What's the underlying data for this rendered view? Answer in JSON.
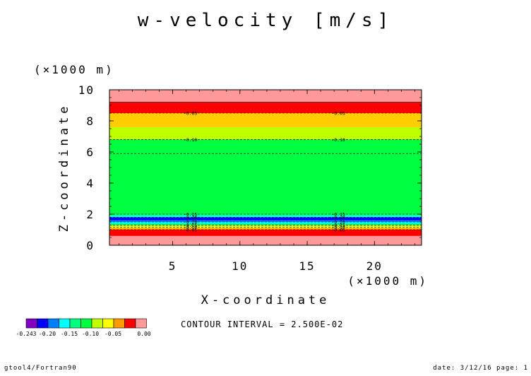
{
  "chart_data": {
    "type": "heatmap",
    "title": "w-velocity [m/s]",
    "xlabel": "X-coordinate",
    "ylabel": "Z-coordinate",
    "x_unit": "(×1000 m)",
    "y_unit": "(×1000 m)",
    "xlim": [
      0.3,
      23.5
    ],
    "ylim": [
      0,
      10
    ],
    "x_ticks": [
      5,
      10,
      15,
      20
    ],
    "y_ticks": [
      0,
      2,
      4,
      6,
      8,
      10
    ],
    "contour_levels": [
      -0.05,
      -0.1,
      -0.15,
      -0.2,
      -0.2,
      -0.15,
      -0.1,
      -0.05
    ],
    "contour_label_x": [
      5.8,
      16.8
    ],
    "contour_interval_text": "CONTOUR INTERVAL = 2.500E-02",
    "legend": {
      "labels": [
        "-0.243",
        "-0.20",
        "-0.15",
        "-0.10",
        "-0.05",
        "0.00"
      ],
      "colors": [
        "#7f00bf",
        "#0000ff",
        "#0080ff",
        "#00ffff",
        "#00ff80",
        "#00ff40",
        "#c0ff00",
        "#ffff00",
        "#ff9900",
        "#ff0000",
        "#ff9999"
      ]
    },
    "bands": [
      {
        "z0": 0.0,
        "z1": 0.6,
        "color": "#ff9999"
      },
      {
        "z0": 0.6,
        "z1": 1.0,
        "color": "#ff0000"
      },
      {
        "z0": 1.0,
        "z1": 1.1,
        "color": "#ff9900"
      },
      {
        "z0": 1.1,
        "z1": 1.2,
        "color": "#ffff00"
      },
      {
        "z0": 1.2,
        "z1": 1.3,
        "color": "#c0ff00"
      },
      {
        "z0": 1.3,
        "z1": 1.4,
        "color": "#00ff80"
      },
      {
        "z0": 1.4,
        "z1": 1.5,
        "color": "#00ffff"
      },
      {
        "z0": 1.5,
        "z1": 1.6,
        "color": "#0080ff"
      },
      {
        "z0": 1.6,
        "z1": 1.8,
        "color": "#0000ff"
      },
      {
        "z0": 1.8,
        "z1": 1.9,
        "color": "#00ffff"
      },
      {
        "z0": 1.9,
        "z1": 2.0,
        "color": "#00ff80"
      },
      {
        "z0": 2.0,
        "z1": 5.9,
        "color": "#00ff40"
      },
      {
        "z0": 5.9,
        "z1": 6.8,
        "color": "#00ff40"
      },
      {
        "z0": 6.8,
        "z1": 7.6,
        "color": "#c0ff00"
      },
      {
        "z0": 7.6,
        "z1": 8.5,
        "color": "#ffcc00"
      },
      {
        "z0": 8.5,
        "z1": 9.2,
        "color": "#ff0000"
      },
      {
        "z0": 9.2,
        "z1": 10.0,
        "color": "#ff9999"
      }
    ],
    "contours": [
      {
        "z": 9.2,
        "label": "",
        "dashed": false
      },
      {
        "z": 8.5,
        "label": "-0.05",
        "dashed": true
      },
      {
        "z": 6.8,
        "label": "-0.10",
        "dashed": true
      },
      {
        "z": 5.9,
        "label": "",
        "dashed": true
      },
      {
        "z": 2.0,
        "label": "-0.15",
        "dashed": true
      },
      {
        "z": 1.8,
        "label": "-0.20",
        "dashed": true
      },
      {
        "z": 1.5,
        "label": "-0.20",
        "dashed": true
      },
      {
        "z": 1.3,
        "label": "-0.15",
        "dashed": true
      },
      {
        "z": 1.15,
        "label": "-0.10",
        "dashed": true
      },
      {
        "z": 1.0,
        "label": "-0.05",
        "dashed": true
      }
    ]
  },
  "footer": {
    "left": "gtool4/Fortran90",
    "right": "date: 3/12/16 page: 1"
  }
}
